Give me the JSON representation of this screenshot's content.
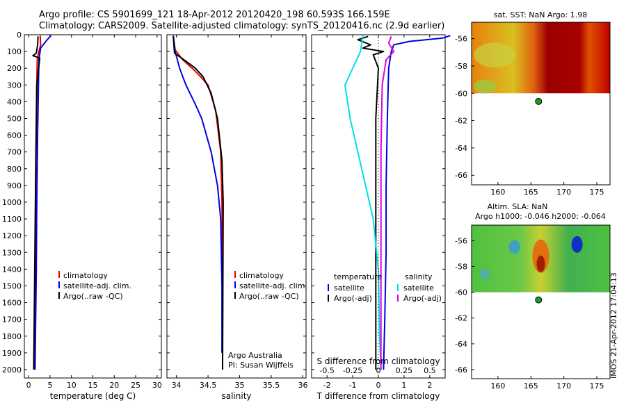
{
  "header": {
    "line1": "Argo profile: CS 5901699_121 18-Apr-2012 20120420_198 60.593S 166.159E",
    "line2": "Climatology: CARS2009. Satellite-adjusted climatology: synTS_20120416.nc (2.9d earlier)"
  },
  "colors": {
    "climatology": "#e00000",
    "satellite": "#0000e0",
    "argo": "#000000",
    "sal_satellite": "#00e0e0",
    "sal_argo": "#e000e0",
    "buoy": "#1a9c2a"
  },
  "depth_ticks": [
    "0",
    "100",
    "200",
    "300",
    "400",
    "500",
    "600",
    "700",
    "800",
    "900",
    "1000",
    "1100",
    "1200",
    "1300",
    "1400",
    "1500",
    "1600",
    "1700",
    "1800",
    "1900",
    "2000"
  ],
  "chart_data": [
    {
      "type": "line",
      "panel": "temperature",
      "xlabel": "temperature (deg C)",
      "xlim": [
        -1,
        31
      ],
      "ylim": [
        2050,
        0
      ],
      "xticks": [
        "0",
        "5",
        "10",
        "15",
        "20",
        "25",
        "30"
      ],
      "legend_labels": [
        "climatology",
        "satellite-adj. clim.",
        "Argo(..raw -QC)"
      ],
      "series": [
        {
          "name": "climatology",
          "color_key": "climatology",
          "x": [
            2.7,
            2.8,
            2.4,
            2.0,
            1.9,
            1.8,
            1.6,
            1.5,
            1.3,
            1.2
          ],
          "y": [
            5,
            60,
            100,
            150,
            300,
            600,
            1000,
            1400,
            1800,
            2000
          ]
        },
        {
          "name": "satellite-adj. clim.",
          "color_key": "satellite",
          "x": [
            5.2,
            4.0,
            2.8,
            2.4,
            2.3,
            2.1,
            1.9,
            1.8,
            1.6,
            1.5
          ],
          "y": [
            5,
            40,
            80,
            150,
            300,
            600,
            1000,
            1400,
            1800,
            2000
          ]
        },
        {
          "name": "Argo(..raw -QC)",
          "color_key": "argo",
          "x": [
            2.2,
            2.1,
            1.8,
            1.0,
            2.6,
            1.9,
            1.7,
            1.5,
            1.3,
            1.2
          ],
          "y": [
            10,
            60,
            110,
            125,
            140,
            300,
            700,
            1200,
            1700,
            2000
          ]
        }
      ]
    },
    {
      "type": "line",
      "panel": "salinity",
      "xlabel": "salinity",
      "xlim": [
        33.85,
        36.05
      ],
      "ylim": [
        2050,
        0
      ],
      "xticks": [
        "34",
        "34.5",
        "35",
        "35.5",
        "36"
      ],
      "legend_labels": [
        "climatology",
        "satellite-adj. clim.",
        "Argo(..raw -QC)"
      ],
      "annotation": [
        "Argo Australia",
        "PI: Susan Wijffels"
      ],
      "series": [
        {
          "name": "climatology",
          "color_key": "climatology",
          "x": [
            33.95,
            33.98,
            34.1,
            34.25,
            34.38,
            34.5,
            34.62,
            34.7,
            34.72,
            34.73,
            34.73
          ],
          "y": [
            5,
            90,
            150,
            200,
            250,
            300,
            450,
            700,
            1000,
            1500,
            2000
          ]
        },
        {
          "name": "satellite-adj. clim.",
          "color_key": "satellite",
          "x": [
            33.95,
            33.98,
            34.05,
            34.15,
            34.28,
            34.4,
            34.55,
            34.65,
            34.7,
            34.72,
            34.72
          ],
          "y": [
            5,
            100,
            200,
            300,
            400,
            500,
            700,
            900,
            1100,
            1500,
            1900
          ]
        },
        {
          "name": "Argo(..raw -QC)",
          "color_key": "argo",
          "x": [
            33.95,
            33.97,
            34.12,
            34.3,
            34.42,
            34.55,
            34.65,
            34.72,
            34.74,
            34.73
          ],
          "y": [
            10,
            110,
            150,
            200,
            250,
            350,
            500,
            750,
            1000,
            2000
          ]
        }
      ]
    },
    {
      "type": "line",
      "panel": "difference",
      "xlabel": "T difference from climatology",
      "xlabel_top": "S difference from climatology",
      "xlim": [
        -2.6,
        2.6
      ],
      "ylim": [
        2050,
        0
      ],
      "xticks": [
        "-2",
        "-1",
        "0",
        "1",
        "2"
      ],
      "xticks_top": [
        "-0.5",
        "-0.25",
        "0",
        "0.25",
        "0.5"
      ],
      "legend_temperature_header": "temperature",
      "legend_salinity_header": "salinity",
      "legend_labels": [
        "satellite",
        "Argo(-adj)",
        "satellite",
        "Argo(-adj)"
      ],
      "series": [
        {
          "name": "satellite",
          "quantity": "temperature",
          "color_key": "satellite",
          "x": [
            2.8,
            2.5,
            1.2,
            0.6,
            0.5,
            0.4,
            0.35,
            0.3,
            0.3,
            0.25,
            0.2
          ],
          "y": [
            5,
            20,
            40,
            60,
            100,
            200,
            500,
            900,
            1300,
            1700,
            2000
          ]
        },
        {
          "name": "Argo(-adj)",
          "quantity": "temperature",
          "color_key": "argo",
          "x": [
            -0.4,
            -0.8,
            -0.3,
            -0.6,
            0.2,
            -0.2,
            0.0,
            -0.1,
            -0.1,
            -0.1,
            -0.1
          ],
          "y": [
            10,
            30,
            60,
            80,
            100,
            120,
            200,
            500,
            900,
            1500,
            2000
          ]
        },
        {
          "name": "satellite",
          "quantity": "salinity",
          "color_key": "sal_satellite",
          "x": [
            -0.6,
            -0.7,
            -1.3,
            -1.1,
            -0.8,
            -0.5,
            -0.2,
            0.0,
            0.05,
            0.1
          ],
          "y": [
            5,
            100,
            300,
            500,
            700,
            900,
            1100,
            1400,
            1800,
            2000
          ]
        },
        {
          "name": "Argo(-adj)",
          "quantity": "salinity",
          "color_key": "sal_argo",
          "x": [
            0.5,
            0.4,
            0.6,
            0.3,
            0.15,
            0.1,
            0.1,
            0.1
          ],
          "y": [
            10,
            50,
            100,
            150,
            300,
            700,
            1400,
            2000
          ]
        }
      ]
    },
    {
      "type": "heatmap",
      "panel": "sst_map",
      "title": "sat. SST: NaN Argo: 1.98",
      "xlim": [
        156,
        177
      ],
      "ylim": [
        -66.7,
        -54.8
      ],
      "xticks": [
        "160",
        "165",
        "170",
        "175"
      ],
      "yticks": [
        "-56",
        "-58",
        "-60",
        "-62",
        "-64",
        "-66"
      ],
      "argo_position": {
        "lon": 166.159,
        "lat": -60.593
      }
    },
    {
      "type": "heatmap",
      "panel": "sla_map",
      "title": "Altim. SLA: NaN",
      "subtitle": "Argo h1000: -0.046 h2000: -0.064",
      "xlim": [
        156,
        177
      ],
      "ylim": [
        -66.7,
        -54.8
      ],
      "xticks": [
        "160",
        "165",
        "170",
        "175"
      ],
      "yticks": [
        "-56",
        "-58",
        "-60",
        "-62",
        "-64",
        "-66"
      ],
      "argo_position": {
        "lon": 166.159,
        "lat": -60.593
      }
    }
  ],
  "footer": {
    "stamp": "IMOS 21-Apr-2012 17:04:13"
  }
}
